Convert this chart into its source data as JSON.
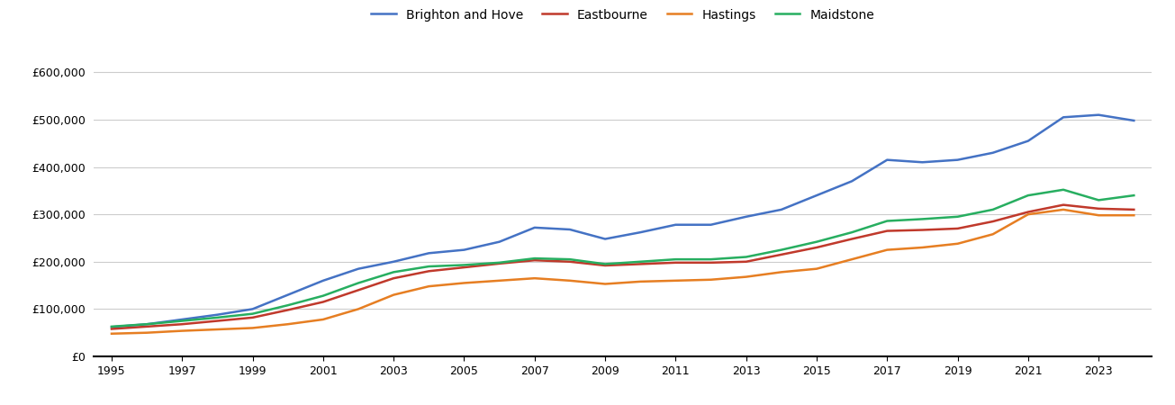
{
  "years": [
    1995,
    1996,
    1997,
    1998,
    1999,
    2000,
    2001,
    2002,
    2003,
    2004,
    2005,
    2006,
    2007,
    2008,
    2009,
    2010,
    2011,
    2012,
    2013,
    2014,
    2015,
    2016,
    2017,
    2018,
    2019,
    2020,
    2021,
    2022,
    2023,
    2024
  ],
  "brighton": [
    62000,
    68000,
    78000,
    88000,
    100000,
    130000,
    160000,
    185000,
    200000,
    218000,
    225000,
    242000,
    272000,
    268000,
    248000,
    262000,
    278000,
    278000,
    295000,
    310000,
    340000,
    370000,
    415000,
    410000,
    415000,
    430000,
    455000,
    505000,
    510000,
    498000
  ],
  "eastbourne": [
    58000,
    63000,
    68000,
    75000,
    82000,
    98000,
    115000,
    140000,
    165000,
    180000,
    188000,
    196000,
    203000,
    200000,
    192000,
    195000,
    198000,
    198000,
    200000,
    215000,
    230000,
    248000,
    265000,
    267000,
    270000,
    285000,
    305000,
    320000,
    312000,
    310000
  ],
  "hastings": [
    48000,
    50000,
    54000,
    57000,
    60000,
    68000,
    78000,
    100000,
    130000,
    148000,
    155000,
    160000,
    165000,
    160000,
    153000,
    158000,
    160000,
    162000,
    168000,
    178000,
    185000,
    205000,
    225000,
    230000,
    238000,
    258000,
    300000,
    310000,
    298000,
    298000
  ],
  "maidstone": [
    63000,
    68000,
    75000,
    82000,
    90000,
    108000,
    128000,
    155000,
    178000,
    190000,
    193000,
    198000,
    207000,
    205000,
    195000,
    200000,
    205000,
    205000,
    210000,
    225000,
    242000,
    262000,
    286000,
    290000,
    295000,
    310000,
    340000,
    352000,
    330000,
    340000
  ],
  "colors": {
    "brighton": "#4472c4",
    "eastbourne": "#c0392b",
    "hastings": "#e67e22",
    "maidstone": "#27ae60"
  },
  "legend_labels": [
    "Brighton and Hove",
    "Eastbourne",
    "Hastings",
    "Maidstone"
  ],
  "yticks": [
    0,
    100000,
    200000,
    300000,
    400000,
    500000,
    600000
  ],
  "ylim": [
    0,
    650000
  ],
  "xlim": [
    1994.5,
    2024.5
  ],
  "background_color": "#ffffff",
  "grid_color": "#cccccc"
}
